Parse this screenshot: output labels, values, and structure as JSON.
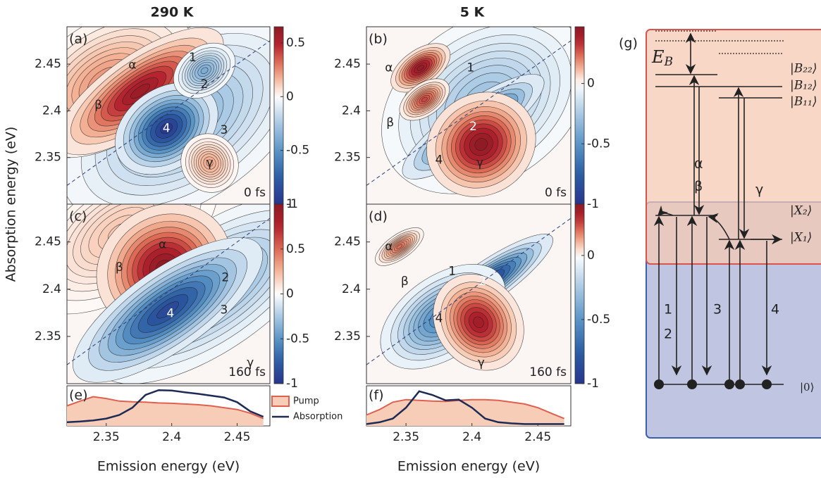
{
  "chart_data": [
    {
      "type": "contour",
      "label": "(a)",
      "title": "290 K",
      "time": "0 fs",
      "ylabel": "Absorption energy (eV)",
      "xlim": [
        2.32,
        2.475
      ],
      "ylim": [
        2.3,
        2.49
      ],
      "yticks": [
        2.35,
        2.4,
        2.45
      ],
      "clim": [
        -1,
        0.65
      ],
      "cticks": [
        0.5,
        0,
        -0.5,
        -1
      ],
      "peaks": [
        {
          "x": 2.41,
          "y": 2.39,
          "amp": -0.35,
          "sx": 0.05,
          "sy": 0.04
        },
        {
          "x": 2.35,
          "y": 2.43,
          "amp": 0.25,
          "sx": 0.035,
          "sy": 0.03
        },
        {
          "x": 2.376,
          "y": 2.421,
          "amp": 0.6,
          "sx": 0.035,
          "sy": 0.018
        },
        {
          "x": 2.396,
          "y": 2.381,
          "amp": -1,
          "sx": 0.02,
          "sy": 0.02
        },
        {
          "x": 2.425,
          "y": 2.443,
          "amp": -0.4,
          "sx": 0.012,
          "sy": 0.012
        },
        {
          "x": 2.429,
          "y": 2.344,
          "amp": 0.2,
          "sx": 0.01,
          "sy": 0.015
        }
      ],
      "annotations": [
        {
          "text": "α",
          "x": 2.37,
          "y": 2.449
        },
        {
          "text": "β",
          "x": 2.344,
          "y": 2.406
        },
        {
          "text": "1",
          "x": 2.416,
          "y": 2.457
        },
        {
          "text": "2",
          "x": 2.425,
          "y": 2.428
        },
        {
          "text": "3",
          "x": 2.44,
          "y": 2.379
        },
        {
          "text": "4",
          "x": 2.396,
          "y": 2.381
        },
        {
          "text": "γ",
          "x": 2.429,
          "y": 2.344
        }
      ]
    },
    {
      "type": "contour",
      "label": "(b)",
      "title": "5 K",
      "time": "0 fs",
      "xlim": [
        2.32,
        2.475
      ],
      "ylim": [
        2.3,
        2.49
      ],
      "yticks": [
        2.35,
        2.4,
        2.45
      ],
      "clim": [
        -1,
        0.47
      ],
      "cticks": [
        0,
        -0.5,
        -1
      ],
      "peaks": [
        {
          "x": 2.41,
          "y": 2.41,
          "amp": -0.3,
          "sx": 0.04,
          "sy": 0.04
        },
        {
          "x": 2.361,
          "y": 2.446,
          "amp": 0.45,
          "sx": 0.012,
          "sy": 0.009
        },
        {
          "x": 2.364,
          "y": 2.412,
          "amp": 0.3,
          "sx": 0.01,
          "sy": 0.008
        },
        {
          "x": 2.401,
          "y": 2.383,
          "amp": -1,
          "sx": 0.03,
          "sy": 0.012
        },
        {
          "x": 2.407,
          "y": 2.364,
          "amp": 0.47,
          "sx": 0.02,
          "sy": 0.025
        }
      ],
      "annotations": [
        {
          "text": "α",
          "x": 2.337,
          "y": 2.446
        },
        {
          "text": "β",
          "x": 2.338,
          "y": 2.387
        },
        {
          "text": "1",
          "x": 2.399,
          "y": 2.446
        },
        {
          "text": "2",
          "x": 2.401,
          "y": 2.383
        },
        {
          "text": "4",
          "x": 2.375,
          "y": 2.347
        },
        {
          "text": "γ",
          "x": 2.406,
          "y": 2.344
        }
      ]
    },
    {
      "type": "contour",
      "label": "(c)",
      "time": "160 fs",
      "xlim": [
        2.32,
        2.475
      ],
      "ylim": [
        2.3,
        2.49
      ],
      "yticks": [
        2.35,
        2.4,
        2.45
      ],
      "clim": [
        -1,
        1
      ],
      "cticks": [
        1,
        0.5,
        0,
        -0.5,
        -1
      ],
      "peaks": [
        {
          "x": 2.43,
          "y": 2.4,
          "amp": -0.4,
          "sx": 0.05,
          "sy": 0.03
        },
        {
          "x": 2.36,
          "y": 2.46,
          "amp": 0.2,
          "sx": 0.04,
          "sy": 0.03
        },
        {
          "x": 2.394,
          "y": 2.423,
          "amp": 1,
          "sx": 0.025,
          "sy": 0.03
        },
        {
          "x": 2.397,
          "y": 2.378,
          "amp": -0.9,
          "sx": 0.04,
          "sy": 0.02
        }
      ],
      "annotations": [
        {
          "text": "α",
          "x": 2.393,
          "y": 2.447
        },
        {
          "text": "β",
          "x": 2.36,
          "y": 2.423
        },
        {
          "text": "2",
          "x": 2.441,
          "y": 2.412
        },
        {
          "text": "3",
          "x": 2.44,
          "y": 2.378
        },
        {
          "text": "4",
          "x": 2.399,
          "y": 2.374
        },
        {
          "text": "γ",
          "x": 2.46,
          "y": 2.322
        }
      ]
    },
    {
      "type": "contour",
      "label": "(d)",
      "time": "160 fs",
      "xlim": [
        2.32,
        2.475
      ],
      "ylim": [
        2.3,
        2.49
      ],
      "yticks": [
        2.35,
        2.4,
        2.45
      ],
      "clim": [
        -1,
        0.4
      ],
      "cticks": [
        0,
        -0.5,
        -1
      ],
      "peaks": [
        {
          "x": 2.345,
          "y": 2.445,
          "amp": 0.2,
          "sx": 0.01,
          "sy": 0.006
        },
        {
          "x": 2.408,
          "y": 2.404,
          "amp": -1,
          "sx": 0.03,
          "sy": 0.01
        },
        {
          "x": 2.378,
          "y": 2.371,
          "amp": -0.6,
          "sx": 0.025,
          "sy": 0.02
        },
        {
          "x": 2.405,
          "y": 2.365,
          "amp": 0.35,
          "sx": 0.015,
          "sy": 0.025
        }
      ],
      "annotations": [
        {
          "text": "α",
          "x": 2.337,
          "y": 2.445
        },
        {
          "text": "1",
          "x": 2.385,
          "y": 2.419
        },
        {
          "text": "β",
          "x": 2.349,
          "y": 2.408
        },
        {
          "text": "2",
          "x": 2.408,
          "y": 2.408
        },
        {
          "text": "4",
          "x": 2.375,
          "y": 2.369
        },
        {
          "text": "γ",
          "x": 2.407,
          "y": 2.322
        }
      ]
    },
    {
      "type": "spectrum",
      "label": "(e)",
      "xlabel": "Emission energy (eV)",
      "x": [
        2.32,
        2.33,
        2.34,
        2.35,
        2.36,
        2.37,
        2.38,
        2.39,
        2.4,
        2.41,
        2.42,
        2.43,
        2.44,
        2.45,
        2.46,
        2.47
      ],
      "xlim": [
        2.32,
        2.475
      ],
      "xticks": [
        2.35,
        2.4,
        2.45
      ],
      "ylim": [
        0,
        1.1
      ],
      "series": [
        {
          "name": "Pump",
          "color": "#e0604f",
          "fill": "#f8cdb8",
          "values": [
            0.55,
            0.68,
            0.8,
            0.75,
            0.68,
            0.66,
            0.65,
            0.63,
            0.62,
            0.6,
            0.58,
            0.55,
            0.5,
            0.45,
            0.35,
            0.2
          ]
        },
        {
          "name": "Absorption",
          "color": "#1c2a55",
          "values": [
            0.1,
            0.12,
            0.15,
            0.2,
            0.3,
            0.5,
            0.85,
            0.98,
            0.97,
            0.92,
            0.88,
            0.83,
            0.78,
            0.65,
            0.4,
            0.25
          ]
        }
      ]
    },
    {
      "type": "spectrum",
      "label": "(f)",
      "xlabel": "Emission energy (eV)",
      "x": [
        2.32,
        2.33,
        2.34,
        2.35,
        2.36,
        2.37,
        2.38,
        2.39,
        2.4,
        2.41,
        2.42,
        2.43,
        2.44,
        2.45,
        2.46,
        2.47
      ],
      "xlim": [
        2.32,
        2.475
      ],
      "xticks": [
        2.35,
        2.4,
        2.45
      ],
      "ylim": [
        0,
        1.1
      ],
      "series": [
        {
          "name": "Pump",
          "color": "#e0604f",
          "fill": "#f8cdb8",
          "values": [
            0.3,
            0.45,
            0.65,
            0.72,
            0.7,
            0.68,
            0.67,
            0.7,
            0.72,
            0.72,
            0.7,
            0.65,
            0.6,
            0.5,
            0.35,
            0.2
          ]
        },
        {
          "name": "Absorption",
          "color": "#1c2a55",
          "values": [
            0.05,
            0.1,
            0.2,
            0.5,
            0.95,
            0.85,
            0.7,
            0.72,
            0.5,
            0.2,
            0.1,
            0.07,
            0.05,
            0.05,
            0.05,
            0.05
          ]
        }
      ]
    }
  ],
  "diagram": {
    "label": "(g)",
    "binding": {
      "main": "E",
      "sub": "B"
    },
    "states": {
      "b22": "|B₂₂⟩",
      "b12": "|B₁₂⟩",
      "b11": "|B₁₁⟩",
      "x2": "|X₂⟩",
      "x1": "|X₁⟩",
      "ground": "|0⟩"
    },
    "transitions": {
      "alpha": "α",
      "beta": "β",
      "gamma": "γ",
      "t1": "1",
      "t2": "2",
      "t3": "3",
      "t4": "4"
    }
  }
}
